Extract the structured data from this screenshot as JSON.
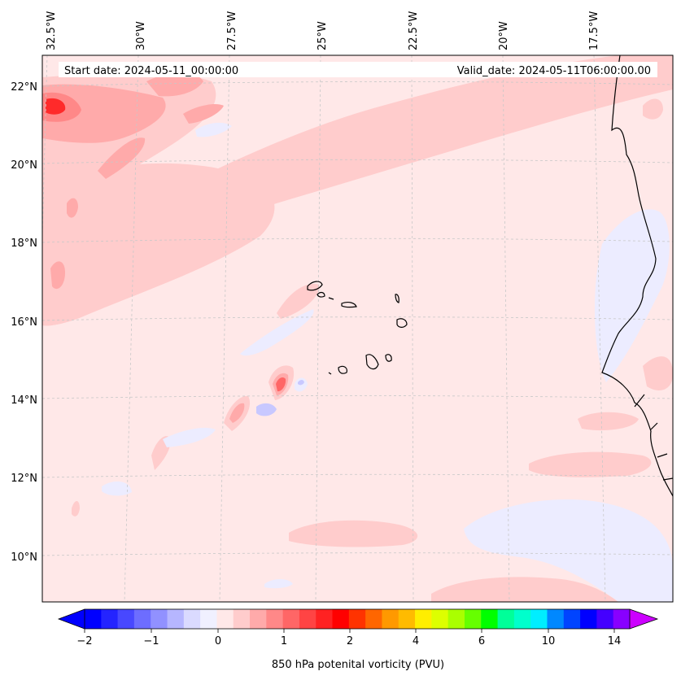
{
  "header": {
    "start_date": "Start date: 2024-05-11_00:00:00",
    "valid_date": "Valid_date: 2024-05-11T06:00:00.00"
  },
  "map": {
    "lon_labels": [
      "32.5°W",
      "30°W",
      "27.5°W",
      "25°W",
      "22.5°W",
      "20°W",
      "17.5°W"
    ],
    "lat_labels": [
      "22°N",
      "20°N",
      "18°N",
      "16°N",
      "14°N",
      "12°N",
      "10°N"
    ],
    "colors": {
      "background_field": "#ffe8e8",
      "light_positive": "#ffcccc",
      "mid_positive": "#ffaaaa",
      "strong_positive": "#ff6666",
      "peak_positive": "#ff2a2a",
      "light_negative": "#ececff",
      "mid_negative": "#c8c8ff",
      "coastline": "#000000",
      "gridline": "#c8c8c8"
    }
  },
  "colorbar": {
    "label": "850 hPa potenital vorticity (PVU)",
    "tick_labels": [
      "−2",
      "−1",
      "0",
      "1",
      "2",
      "4",
      "6",
      "10",
      "14"
    ],
    "colors": [
      "#0000ff",
      "#2424ff",
      "#4848ff",
      "#6d6dff",
      "#9191ff",
      "#b6b6ff",
      "#dadaff",
      "#f0f0ff",
      "#ffe8e8",
      "#ffcccc",
      "#ffaaaa",
      "#ff8888",
      "#ff6666",
      "#ff4444",
      "#ff2222",
      "#ff0000",
      "#ff3300",
      "#ff6600",
      "#ff9900",
      "#ffbb00",
      "#ffee00",
      "#ddff00",
      "#aaff00",
      "#66ff00",
      "#00ff00",
      "#00ff99",
      "#00ffcc",
      "#00eeff",
      "#0088ff",
      "#0044ff",
      "#0000ff",
      "#4400ff",
      "#8800ff"
    ],
    "extend_min_color": "#0000ff",
    "extend_max_color": "#cc00ff"
  }
}
